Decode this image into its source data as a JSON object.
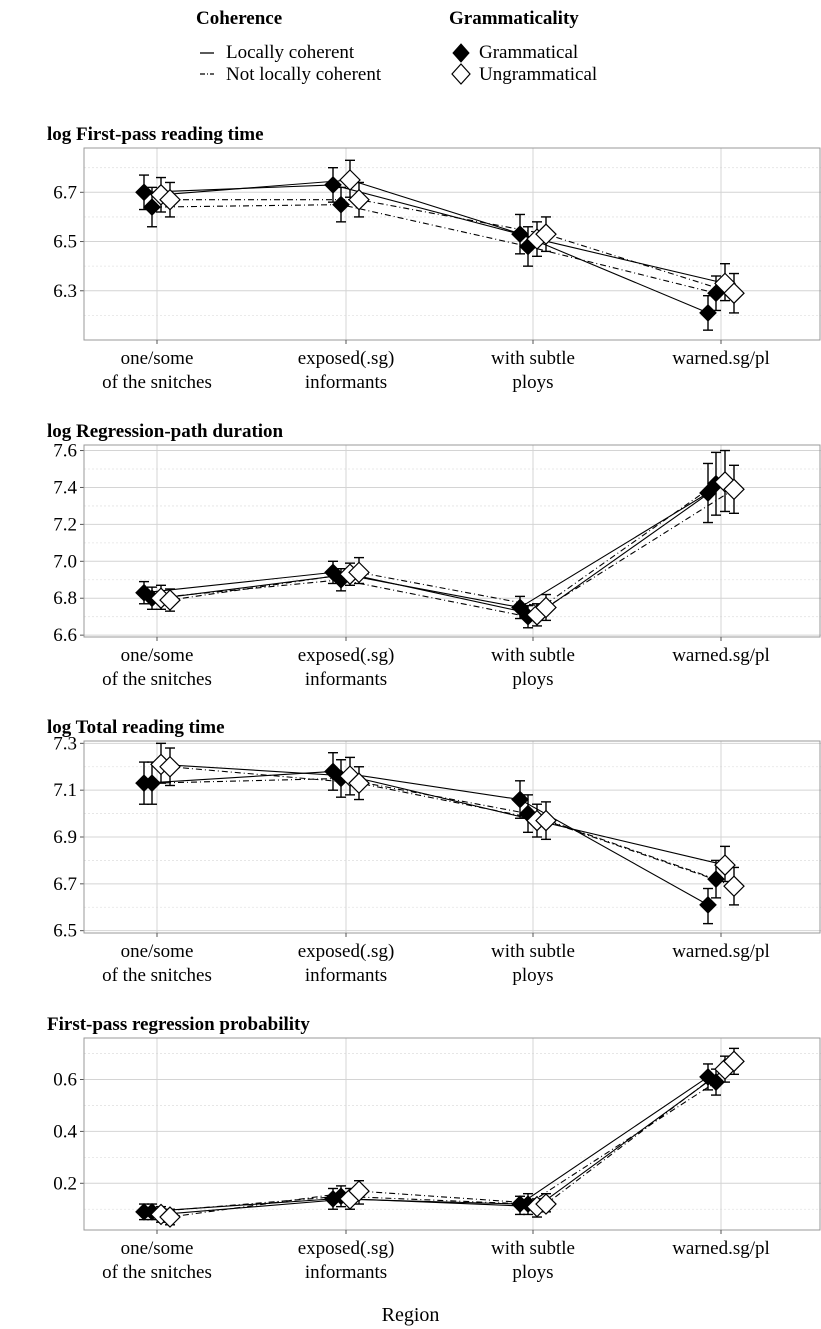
{
  "legend": {
    "coherence": {
      "title": "Coherence",
      "items": [
        "Locally coherent",
        "Not locally coherent"
      ]
    },
    "grammaticality": {
      "title": "Grammaticality",
      "items": [
        "Grammatical",
        "Ungrammatical"
      ]
    }
  },
  "x_axis_title": "Region",
  "chart_data": [
    {
      "type": "line",
      "title": "log First-pass reading time",
      "categories": [
        "one/some\nof the snitches",
        "exposed(.sg)\ninformants",
        "with subtle\nploys",
        "warned.sg/pl"
      ],
      "ylim": [
        6.1,
        6.88
      ],
      "yticks": [
        6.3,
        6.5,
        6.7
      ],
      "grid": true,
      "series": [
        {
          "name": "Grammatical, Locally coherent",
          "values": [
            6.7,
            6.73,
            6.53,
            6.21
          ],
          "ci": [
            [
              6.63,
              6.77
            ],
            [
              6.66,
              6.8
            ],
            [
              6.45,
              6.61
            ],
            [
              6.14,
              6.28
            ]
          ]
        },
        {
          "name": "Grammatical, Not locally coherent",
          "values": [
            6.64,
            6.65,
            6.48,
            6.29
          ],
          "ci": [
            [
              6.56,
              6.72
            ],
            [
              6.58,
              6.72
            ],
            [
              6.4,
              6.56
            ],
            [
              6.22,
              6.36
            ]
          ]
        },
        {
          "name": "Ungrammatical, Locally coherent",
          "values": [
            6.69,
            6.75,
            6.51,
            6.33
          ],
          "ci": [
            [
              6.62,
              6.76
            ],
            [
              6.68,
              6.83
            ],
            [
              6.44,
              6.58
            ],
            [
              6.26,
              6.41
            ]
          ]
        },
        {
          "name": "Ungrammatical, Not locally coherent",
          "values": [
            6.67,
            6.67,
            6.53,
            6.29
          ],
          "ci": [
            [
              6.6,
              6.74
            ],
            [
              6.6,
              6.74
            ],
            [
              6.46,
              6.6
            ],
            [
              6.21,
              6.37
            ]
          ]
        }
      ]
    },
    {
      "type": "line",
      "title": "log Regression-path duration",
      "categories": [
        "one/some\nof the snitches",
        "exposed(.sg)\ninformants",
        "with subtle\nploys",
        "warned.sg/pl"
      ],
      "ylim": [
        6.59,
        7.63
      ],
      "yticks": [
        6.6,
        6.8,
        7.0,
        7.2,
        7.4,
        7.6
      ],
      "grid": true,
      "series": [
        {
          "name": "Grammatical, Locally coherent",
          "values": [
            6.83,
            6.94,
            6.75,
            7.37
          ],
          "ci": [
            [
              6.77,
              6.89
            ],
            [
              6.88,
              7.0
            ],
            [
              6.69,
              6.81
            ],
            [
              7.21,
              7.53
            ]
          ]
        },
        {
          "name": "Grammatical, Not locally coherent",
          "values": [
            6.8,
            6.9,
            6.7,
            7.42
          ],
          "ci": [
            [
              6.74,
              6.86
            ],
            [
              6.84,
              6.96
            ],
            [
              6.64,
              6.76
            ],
            [
              7.25,
              7.59
            ]
          ]
        },
        {
          "name": "Ungrammatical, Locally coherent",
          "values": [
            6.8,
            6.93,
            6.71,
            7.43
          ],
          "ci": [
            [
              6.74,
              6.87
            ],
            [
              6.87,
              6.99
            ],
            [
              6.65,
              6.77
            ],
            [
              7.27,
              7.6
            ]
          ]
        },
        {
          "name": "Ungrammatical, Not locally coherent",
          "values": [
            6.79,
            6.94,
            6.75,
            7.39
          ],
          "ci": [
            [
              6.73,
              6.85
            ],
            [
              6.88,
              7.02
            ],
            [
              6.68,
              6.82
            ],
            [
              7.26,
              7.52
            ]
          ]
        }
      ]
    },
    {
      "type": "line",
      "title": "log Total reading time",
      "categories": [
        "one/some\nof the snitches",
        "exposed(.sg)\ninformants",
        "with subtle\nploys",
        "warned.sg/pl"
      ],
      "ylim": [
        6.49,
        7.31
      ],
      "yticks": [
        6.5,
        6.7,
        6.9,
        7.1,
        7.3
      ],
      "grid": true,
      "series": [
        {
          "name": "Grammatical, Locally coherent",
          "values": [
            7.13,
            7.18,
            7.06,
            6.61
          ],
          "ci": [
            [
              7.04,
              7.22
            ],
            [
              7.1,
              7.26
            ],
            [
              6.98,
              7.14
            ],
            [
              6.53,
              6.68
            ]
          ]
        },
        {
          "name": "Grammatical, Not locally coherent",
          "values": [
            7.13,
            7.15,
            7.0,
            6.72
          ],
          "ci": [
            [
              7.04,
              7.22
            ],
            [
              7.07,
              7.23
            ],
            [
              6.92,
              7.08
            ],
            [
              6.64,
              6.8
            ]
          ]
        },
        {
          "name": "Ungrammatical, Locally coherent",
          "values": [
            7.21,
            7.16,
            6.97,
            6.78
          ],
          "ci": [
            [
              7.13,
              7.3
            ],
            [
              7.08,
              7.24
            ],
            [
              6.9,
              7.04
            ],
            [
              6.71,
              6.86
            ]
          ]
        },
        {
          "name": "Ungrammatical, Not locally coherent",
          "values": [
            7.2,
            7.13,
            6.97,
            6.69
          ],
          "ci": [
            [
              7.12,
              7.28
            ],
            [
              7.06,
              7.2
            ],
            [
              6.89,
              7.05
            ],
            [
              6.61,
              6.77
            ]
          ]
        }
      ]
    },
    {
      "type": "line",
      "title": "First-pass regression probability",
      "categories": [
        "one/some\nof the snitches",
        "exposed(.sg)\ninformants",
        "with subtle\nploys",
        "warned.sg/pl"
      ],
      "ylim": [
        0.02,
        0.76
      ],
      "yticks": [
        0.2,
        0.4,
        0.6
      ],
      "grid": true,
      "series": [
        {
          "name": "Grammatical, Locally coherent",
          "values": [
            0.09,
            0.14,
            0.12,
            0.61
          ],
          "ci": [
            [
              0.06,
              0.12
            ],
            [
              0.1,
              0.18
            ],
            [
              0.08,
              0.15
            ],
            [
              0.56,
              0.66
            ]
          ]
        },
        {
          "name": "Grammatical, Not locally coherent",
          "values": [
            0.09,
            0.15,
            0.12,
            0.59
          ],
          "ci": [
            [
              0.06,
              0.12
            ],
            [
              0.11,
              0.19
            ],
            [
              0.08,
              0.16
            ],
            [
              0.54,
              0.64
            ]
          ]
        },
        {
          "name": "Ungrammatical, Locally coherent",
          "values": [
            0.08,
            0.14,
            0.11,
            0.64
          ],
          "ci": [
            [
              0.05,
              0.11
            ],
            [
              0.1,
              0.18
            ],
            [
              0.07,
              0.14
            ],
            [
              0.59,
              0.69
            ]
          ]
        },
        {
          "name": "Ungrammatical, Not locally coherent",
          "values": [
            0.07,
            0.17,
            0.12,
            0.67
          ],
          "ci": [
            [
              0.04,
              0.1
            ],
            [
              0.12,
              0.21
            ],
            [
              0.09,
              0.16
            ],
            [
              0.62,
              0.72
            ]
          ]
        }
      ]
    }
  ]
}
